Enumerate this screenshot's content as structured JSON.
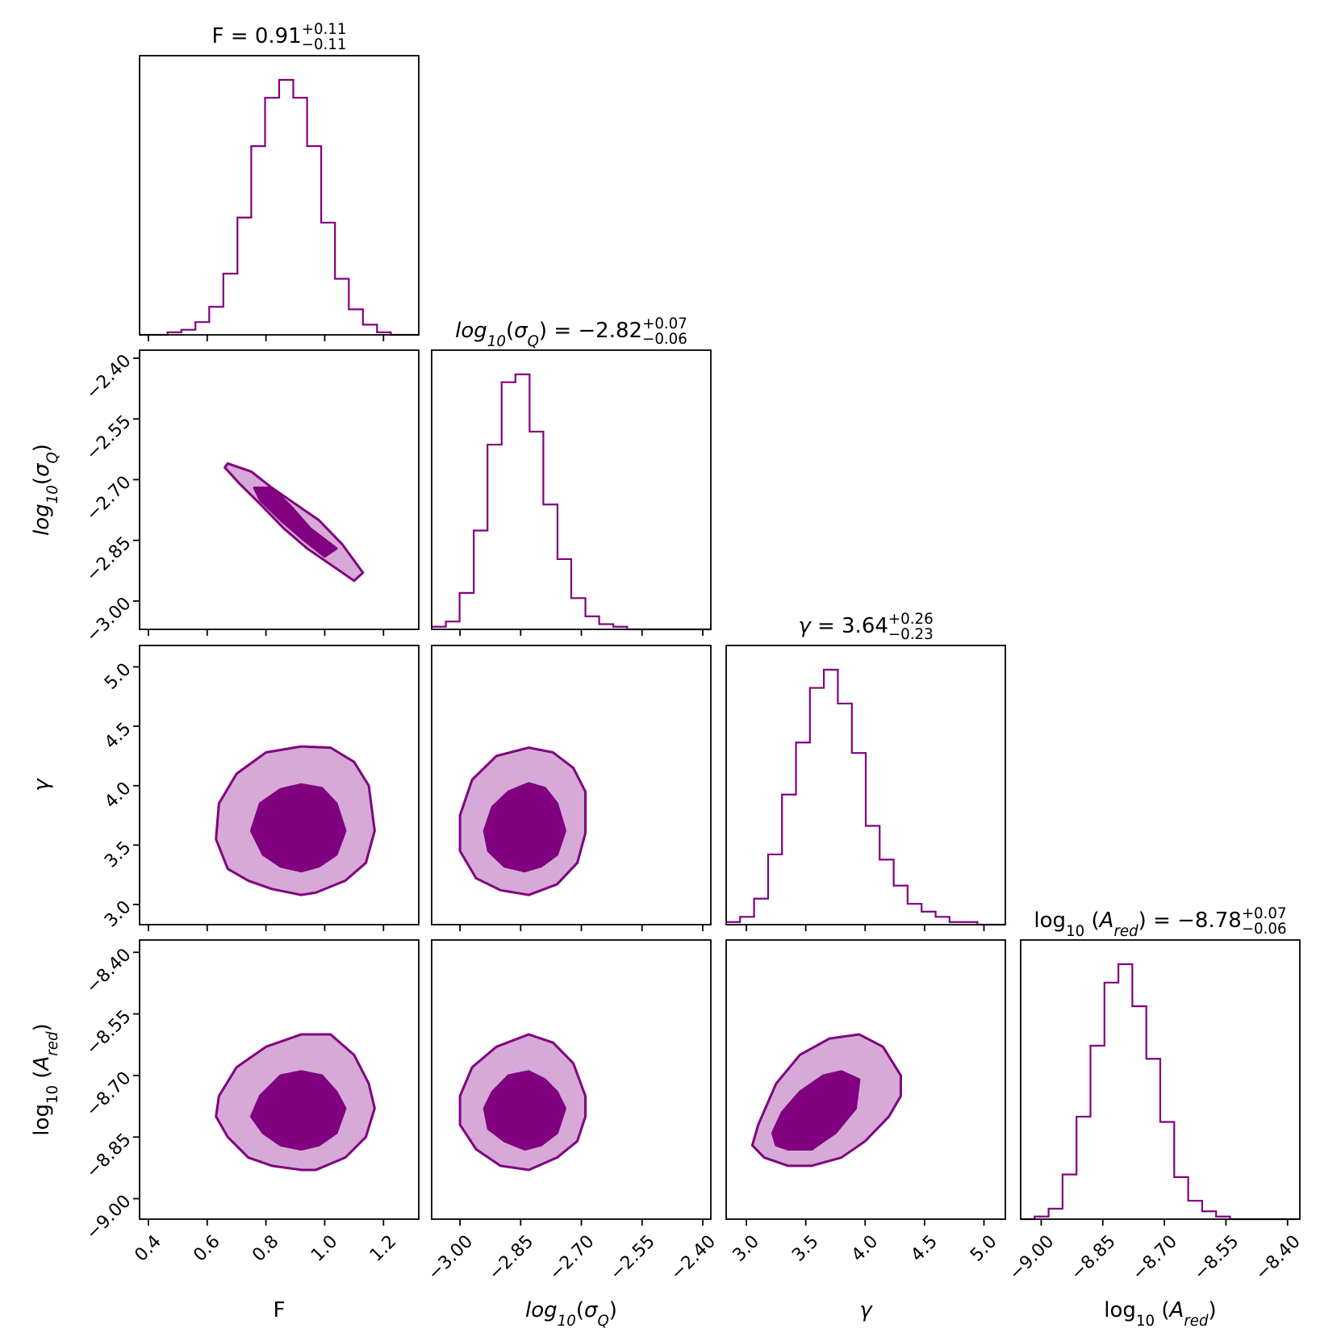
{
  "colors": {
    "line": "#800080",
    "dark_fill": "#800080",
    "light_fill": "#d6a9d6"
  },
  "chart_data": {
    "type": "corner",
    "parameters": [
      {
        "key": "F",
        "label": "F",
        "ticks": [
          0.4,
          0.6,
          0.8,
          1.0,
          1.2
        ],
        "range": [
          0.37,
          1.32
        ],
        "tick_labels": [
          "0.4",
          "0.6",
          "0.8",
          "1.0",
          "1.2"
        ]
      },
      {
        "key": "log10_sigma_Q",
        "label": "log10(σQ)",
        "ticks": [
          -3.0,
          -2.85,
          -2.7,
          -2.55,
          -2.4
        ],
        "range": [
          -3.07,
          -2.38
        ],
        "tick_labels": [
          "−3.00",
          "−2.85",
          "−2.70",
          "−2.55",
          "−2.40"
        ]
      },
      {
        "key": "gamma",
        "label": "γ",
        "ticks": [
          3.0,
          3.5,
          4.0,
          4.5,
          5.0
        ],
        "range": [
          2.83,
          5.18
        ],
        "tick_labels": [
          "3.0",
          "3.5",
          "4.0",
          "4.5",
          "5.0"
        ]
      },
      {
        "key": "log10_A_red",
        "label": "log10(Ared)",
        "ticks": [
          -9.0,
          -8.85,
          -8.7,
          -8.55,
          -8.4
        ],
        "range": [
          -9.05,
          -8.37
        ],
        "tick_labels": [
          "−9.00",
          "−8.85",
          "−8.70",
          "−8.55",
          "−8.40"
        ]
      }
    ],
    "titles": [
      {
        "text": "F = 0.91",
        "up": "+0.11",
        "down": "−0.11"
      },
      {
        "text": "log10(σQ) = −2.82",
        "up": "+0.07",
        "down": "−0.06"
      },
      {
        "text": "γ = 3.64",
        "up": "+0.26",
        "down": "−0.23"
      },
      {
        "text": "log10(Ared) = −8.78",
        "up": "+0.07",
        "down": "−0.06"
      }
    ],
    "histograms": [
      {
        "param": 0,
        "bin_edges": [
          0.37,
          0.418,
          0.465,
          0.512,
          0.56,
          0.607,
          0.655,
          0.703,
          0.75,
          0.797,
          0.845,
          0.893,
          0.94,
          0.988,
          1.035,
          1.082,
          1.13,
          1.178,
          1.225,
          1.272,
          1.32
        ],
        "counts": [
          0,
          0,
          0.01,
          0.02,
          0.05,
          0.11,
          0.24,
          0.46,
          0.74,
          0.93,
          1.0,
          0.93,
          0.74,
          0.44,
          0.22,
          0.1,
          0.04,
          0.01,
          0,
          0
        ]
      },
      {
        "param": 1,
        "bin_edges": [
          -3.07,
          -3.035,
          -3.001,
          -2.966,
          -2.932,
          -2.897,
          -2.863,
          -2.828,
          -2.794,
          -2.759,
          -2.725,
          -2.69,
          -2.656,
          -2.621,
          -2.587,
          -2.552,
          -2.518,
          -2.483,
          -2.449,
          -2.414,
          -2.38
        ],
        "counts": [
          0.01,
          0.03,
          0.14,
          0.38,
          0.71,
          0.95,
          0.98,
          0.76,
          0.48,
          0.27,
          0.12,
          0.05,
          0.02,
          0.01,
          0,
          0,
          0,
          0,
          0,
          0
        ]
      },
      {
        "param": 2,
        "bin_edges": [
          2.83,
          2.947,
          3.065,
          3.183,
          3.3,
          3.418,
          3.535,
          3.652,
          3.77,
          3.888,
          4.005,
          4.122,
          4.24,
          4.357,
          4.475,
          4.593,
          4.71,
          4.827,
          4.945,
          5.062,
          5.18
        ],
        "counts": [
          0.01,
          0.03,
          0.1,
          0.27,
          0.5,
          0.7,
          0.91,
          0.98,
          0.85,
          0.66,
          0.38,
          0.25,
          0.15,
          0.08,
          0.05,
          0.03,
          0.01,
          0.01,
          0,
          0
        ]
      },
      {
        "param": 3,
        "bin_edges": [
          -9.05,
          -9.016,
          -8.982,
          -8.948,
          -8.914,
          -8.88,
          -8.846,
          -8.812,
          -8.778,
          -8.744,
          -8.71,
          -8.676,
          -8.642,
          -8.608,
          -8.574,
          -8.54,
          -8.506,
          -8.472,
          -8.438,
          -8.404,
          -8.37
        ],
        "counts": [
          0,
          0.01,
          0.04,
          0.17,
          0.39,
          0.66,
          0.9,
          0.97,
          0.81,
          0.61,
          0.37,
          0.16,
          0.07,
          0.03,
          0.01,
          0,
          0,
          0,
          0,
          0
        ]
      }
    ],
    "contours": [
      {
        "x": 0,
        "y": 1,
        "outer": [
          [
            0.67,
            -2.66
          ],
          [
            0.75,
            -2.68
          ],
          [
            0.82,
            -2.72
          ],
          [
            0.9,
            -2.76
          ],
          [
            0.98,
            -2.8
          ],
          [
            1.06,
            -2.86
          ],
          [
            1.13,
            -2.93
          ],
          [
            1.1,
            -2.95
          ],
          [
            1.02,
            -2.91
          ],
          [
            0.94,
            -2.87
          ],
          [
            0.86,
            -2.82
          ],
          [
            0.78,
            -2.76
          ],
          [
            0.71,
            -2.71
          ],
          [
            0.66,
            -2.67
          ]
        ],
        "inner": [
          [
            0.76,
            -2.72
          ],
          [
            0.82,
            -2.72
          ],
          [
            0.89,
            -2.77
          ],
          [
            0.95,
            -2.82
          ],
          [
            1.04,
            -2.87
          ],
          [
            1.0,
            -2.89
          ],
          [
            0.93,
            -2.85
          ],
          [
            0.85,
            -2.8
          ],
          [
            0.78,
            -2.75
          ]
        ]
      },
      {
        "x": 0,
        "y": 2,
        "outer": [
          [
            0.92,
            4.33
          ],
          [
            1.02,
            4.32
          ],
          [
            1.1,
            4.2
          ],
          [
            1.15,
            4.0
          ],
          [
            1.17,
            3.62
          ],
          [
            1.14,
            3.35
          ],
          [
            1.07,
            3.2
          ],
          [
            0.97,
            3.1
          ],
          [
            0.92,
            3.08
          ],
          [
            0.82,
            3.13
          ],
          [
            0.74,
            3.2
          ],
          [
            0.67,
            3.3
          ],
          [
            0.63,
            3.55
          ],
          [
            0.64,
            3.85
          ],
          [
            0.7,
            4.1
          ],
          [
            0.8,
            4.28
          ]
        ],
        "inner": [
          [
            0.92,
            4.01
          ],
          [
            0.99,
            3.98
          ],
          [
            1.04,
            3.85
          ],
          [
            1.07,
            3.62
          ],
          [
            1.04,
            3.42
          ],
          [
            0.98,
            3.32
          ],
          [
            0.92,
            3.28
          ],
          [
            0.85,
            3.32
          ],
          [
            0.79,
            3.42
          ],
          [
            0.75,
            3.62
          ],
          [
            0.78,
            3.85
          ],
          [
            0.85,
            3.97
          ]
        ]
      },
      {
        "x": 1,
        "y": 2,
        "outer": [
          [
            -2.83,
            4.32
          ],
          [
            -2.77,
            4.28
          ],
          [
            -2.72,
            4.15
          ],
          [
            -2.69,
            3.95
          ],
          [
            -2.69,
            3.6
          ],
          [
            -2.71,
            3.35
          ],
          [
            -2.76,
            3.17
          ],
          [
            -2.83,
            3.08
          ],
          [
            -2.9,
            3.12
          ],
          [
            -2.96,
            3.22
          ],
          [
            -3.0,
            3.45
          ],
          [
            -3.0,
            3.75
          ],
          [
            -2.97,
            4.05
          ],
          [
            -2.91,
            4.25
          ]
        ],
        "inner": [
          [
            -2.83,
            4.02
          ],
          [
            -2.79,
            3.98
          ],
          [
            -2.76,
            3.85
          ],
          [
            -2.74,
            3.62
          ],
          [
            -2.76,
            3.42
          ],
          [
            -2.8,
            3.32
          ],
          [
            -2.84,
            3.28
          ],
          [
            -2.89,
            3.32
          ],
          [
            -2.93,
            3.45
          ],
          [
            -2.94,
            3.62
          ],
          [
            -2.92,
            3.82
          ],
          [
            -2.88,
            3.95
          ]
        ]
      },
      {
        "x": 0,
        "y": 3,
        "outer": [
          [
            0.92,
            -8.6
          ],
          [
            1.02,
            -8.6
          ],
          [
            1.1,
            -8.65
          ],
          [
            1.15,
            -8.72
          ],
          [
            1.17,
            -8.78
          ],
          [
            1.14,
            -8.85
          ],
          [
            1.07,
            -8.9
          ],
          [
            0.97,
            -8.93
          ],
          [
            0.92,
            -8.93
          ],
          [
            0.82,
            -8.92
          ],
          [
            0.74,
            -8.9
          ],
          [
            0.67,
            -8.85
          ],
          [
            0.63,
            -8.8
          ],
          [
            0.64,
            -8.75
          ],
          [
            0.7,
            -8.68
          ],
          [
            0.8,
            -8.63
          ]
        ],
        "inner": [
          [
            0.92,
            -8.69
          ],
          [
            0.99,
            -8.7
          ],
          [
            1.04,
            -8.74
          ],
          [
            1.07,
            -8.78
          ],
          [
            1.04,
            -8.84
          ],
          [
            0.98,
            -8.87
          ],
          [
            0.92,
            -8.88
          ],
          [
            0.85,
            -8.87
          ],
          [
            0.79,
            -8.84
          ],
          [
            0.75,
            -8.8
          ],
          [
            0.78,
            -8.75
          ],
          [
            0.85,
            -8.7
          ]
        ]
      },
      {
        "x": 1,
        "y": 3,
        "outer": [
          [
            -2.83,
            -8.6
          ],
          [
            -2.77,
            -8.62
          ],
          [
            -2.72,
            -8.67
          ],
          [
            -2.69,
            -8.75
          ],
          [
            -2.69,
            -8.8
          ],
          [
            -2.71,
            -8.86
          ],
          [
            -2.76,
            -8.9
          ],
          [
            -2.83,
            -8.93
          ],
          [
            -2.9,
            -8.92
          ],
          [
            -2.96,
            -8.88
          ],
          [
            -3.0,
            -8.82
          ],
          [
            -3.0,
            -8.75
          ],
          [
            -2.97,
            -8.68
          ],
          [
            -2.91,
            -8.63
          ]
        ],
        "inner": [
          [
            -2.83,
            -8.69
          ],
          [
            -2.79,
            -8.71
          ],
          [
            -2.76,
            -8.74
          ],
          [
            -2.74,
            -8.78
          ],
          [
            -2.76,
            -8.84
          ],
          [
            -2.8,
            -8.87
          ],
          [
            -2.84,
            -8.88
          ],
          [
            -2.89,
            -8.86
          ],
          [
            -2.93,
            -8.83
          ],
          [
            -2.94,
            -8.78
          ],
          [
            -2.92,
            -8.74
          ],
          [
            -2.88,
            -8.7
          ]
        ]
      },
      {
        "x": 2,
        "y": 3,
        "outer": [
          [
            3.05,
            -8.87
          ],
          [
            3.1,
            -8.82
          ],
          [
            3.25,
            -8.72
          ],
          [
            3.45,
            -8.65
          ],
          [
            3.7,
            -8.61
          ],
          [
            3.95,
            -8.6
          ],
          [
            4.15,
            -8.63
          ],
          [
            4.3,
            -8.7
          ],
          [
            4.3,
            -8.75
          ],
          [
            4.2,
            -8.8
          ],
          [
            4.0,
            -8.86
          ],
          [
            3.8,
            -8.9
          ],
          [
            3.55,
            -8.92
          ],
          [
            3.35,
            -8.92
          ],
          [
            3.15,
            -8.9
          ]
        ],
        "inner": [
          [
            3.22,
            -8.84
          ],
          [
            3.3,
            -8.79
          ],
          [
            3.45,
            -8.74
          ],
          [
            3.65,
            -8.7
          ],
          [
            3.8,
            -8.69
          ],
          [
            3.95,
            -8.71
          ],
          [
            3.92,
            -8.78
          ],
          [
            3.75,
            -8.84
          ],
          [
            3.55,
            -8.88
          ],
          [
            3.35,
            -8.88
          ],
          [
            3.25,
            -8.87
          ]
        ]
      }
    ],
    "grid": false,
    "legend": "none"
  }
}
